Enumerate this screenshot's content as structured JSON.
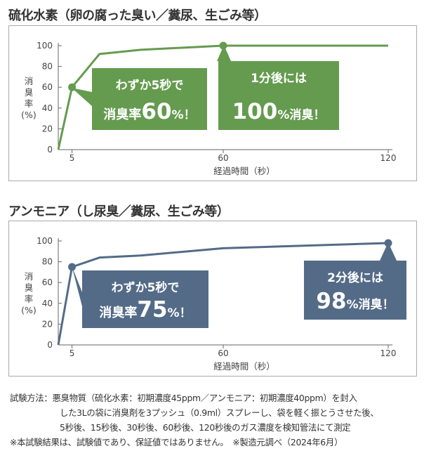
{
  "chart_data": [
    {
      "type": "line",
      "title": "硫化水素（卵の腐った臭い／糞尿、生ごみ等）",
      "xlabel": "経過時間（秒）",
      "ylabel": [
        "消",
        "臭",
        "率",
        "(%)"
      ],
      "x_ticks": [
        5,
        60,
        120
      ],
      "y_ticks": [
        0,
        20,
        40,
        60,
        80,
        100
      ],
      "xlim": [
        0,
        120
      ],
      "ylim": [
        0,
        100
      ],
      "color": "#659b4f",
      "series": [
        {
          "x": [
            0,
            5,
            15,
            30,
            60,
            120
          ],
          "y": [
            0,
            60,
            92,
            96,
            100,
            100
          ]
        }
      ],
      "markers": [
        {
          "x": 5,
          "y": 60
        },
        {
          "x": 60,
          "y": 100
        }
      ],
      "callouts": [
        {
          "line1": "わずか5秒で",
          "prefix": "消臭率",
          "big": "60",
          "suffix": "%！"
        },
        {
          "line1": "1分後には",
          "prefix": "",
          "big": "100",
          "suffix": "%消臭！"
        }
      ]
    },
    {
      "type": "line",
      "title": "アンモニア（し尿臭／糞尿、生ごみ等）",
      "xlabel": "経過時間（秒）",
      "ylabel": [
        "消",
        "臭",
        "率",
        "(%)"
      ],
      "x_ticks": [
        5,
        60,
        120
      ],
      "y_ticks": [
        0,
        20,
        40,
        60,
        80,
        100
      ],
      "xlim": [
        0,
        120
      ],
      "ylim": [
        0,
        100
      ],
      "color": "#536b87",
      "series": [
        {
          "x": [
            0,
            5,
            15,
            30,
            60,
            120
          ],
          "y": [
            0,
            75,
            84,
            86,
            93,
            98
          ]
        }
      ],
      "markers": [
        {
          "x": 5,
          "y": 75
        },
        {
          "x": 120,
          "y": 98
        }
      ],
      "callouts": [
        {
          "line1": "わずか5秒で",
          "prefix": "消臭率",
          "big": "75",
          "suffix": "%！"
        },
        {
          "line1": "2分後には",
          "prefix": "",
          "big": "98",
          "suffix": "%消臭！"
        }
      ]
    }
  ],
  "footnote": {
    "lines": [
      "試験方法：悪臭物質（硫化水素：初期濃度45ppm／アンモニア：初期濃度40ppm）を封入",
      "した3Lの袋に消臭剤を3プッシュ（0.9ml）スプレーし、袋を軽く振とうさせた後、",
      "5秒後、15秒後、30秒後、60秒後、120秒後のガス濃度を検知管法にて測定",
      "※本試験結果は、試験値であり、保証値ではありません。　※製造元調べ（2024年6月）"
    ]
  }
}
